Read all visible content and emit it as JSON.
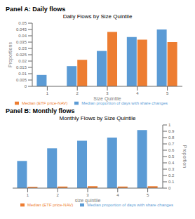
{
  "chart_data": [
    {
      "type": "bar",
      "panel": "Panel A: Daily flows",
      "title": "Daily Flows by Size Quintile",
      "xlabel": "Size Quintile",
      "ylabel": "Proportions",
      "categories": [
        "1",
        "2",
        "3",
        "4",
        "5"
      ],
      "series": [
        {
          "name": "Median proportion of days with share changes",
          "color": "#5b9bd5",
          "values": [
            0.009,
            0.016,
            0.028,
            0.039,
            0.045
          ]
        },
        {
          "name": "Median (ETF price-NAV)",
          "color": "#ed7d31",
          "values": [
            null,
            0.021,
            0.043,
            0.037,
            0.035
          ]
        }
      ],
      "ylim": [
        0,
        0.05
      ],
      "yticks": [
        0,
        0.005,
        0.01,
        0.015,
        0.02,
        0.025,
        0.03,
        0.035,
        0.04,
        0.045,
        0.05
      ],
      "grid": false,
      "legend": "bottom"
    },
    {
      "type": "bar",
      "panel": "Panel B:  Monthly flows",
      "title": "Monthly Flows by Size Quintile",
      "xlabel": "size quintile",
      "y2label": "Proportion",
      "categories": [
        "1",
        "2",
        "3",
        "4",
        "5"
      ],
      "series": [
        {
          "name": "Median proportion of days with share changes",
          "color": "#5b9bd5",
          "values": [
            0.43,
            0.63,
            0.75,
            0.8,
            0.92
          ],
          "axis": "y2"
        },
        {
          "name": "Median (ETF price-NAV)",
          "color": "#ed7d31",
          "values": [
            0.02,
            0.025,
            0.03,
            0.025,
            0.03
          ],
          "axis": "y2"
        }
      ],
      "y2lim": [
        0,
        1
      ],
      "y2ticks": [
        0,
        0.1,
        0.2,
        0.3,
        0.4,
        0.5,
        0.6,
        0.7,
        0.8,
        0.9,
        1
      ],
      "grid": false,
      "legend": "bottom"
    }
  ]
}
